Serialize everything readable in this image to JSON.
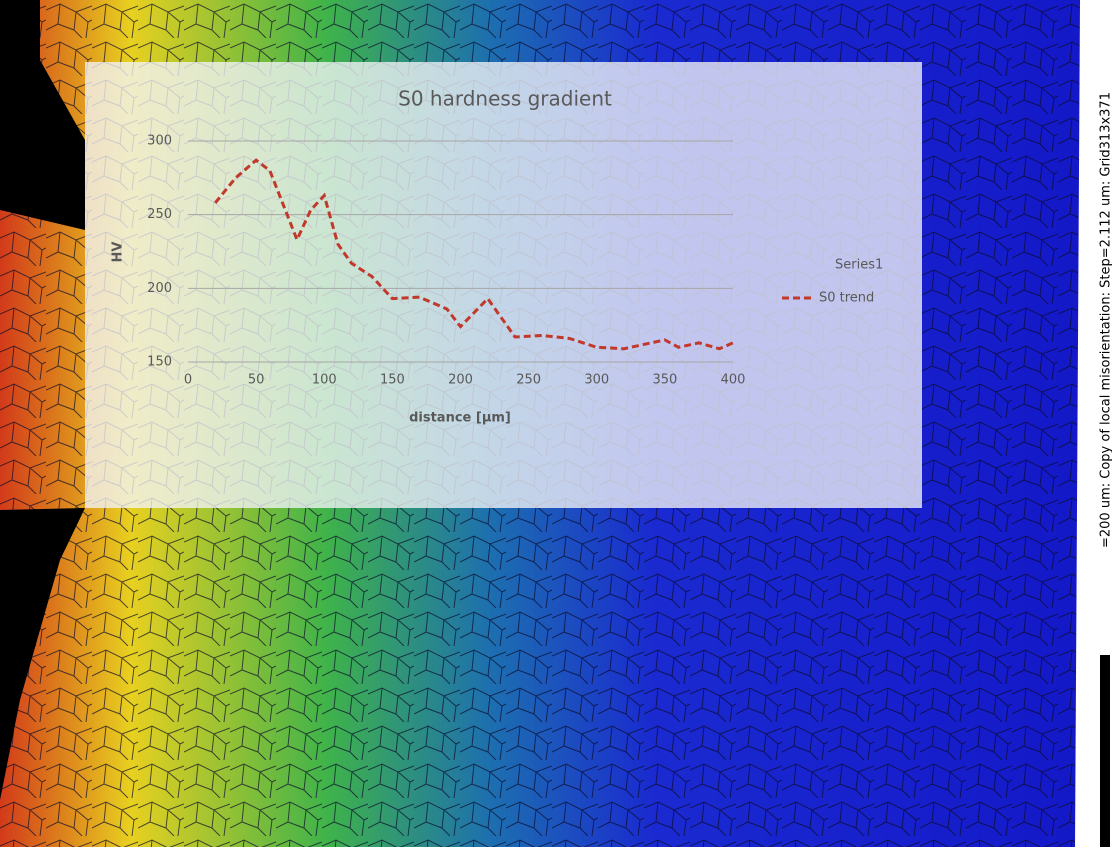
{
  "chart_data": {
    "type": "line",
    "title": "S0 hardness gradient",
    "xlabel": "distance [µm]",
    "ylabel": "HV",
    "x": [
      20,
      35,
      50,
      60,
      80,
      90,
      100,
      110,
      120,
      135,
      150,
      170,
      190,
      200,
      220,
      240,
      260,
      280,
      300,
      320,
      335,
      350,
      360,
      375,
      390,
      400
    ],
    "series": [
      {
        "name": "S0 trend",
        "color": "#c0392b",
        "dashed": true,
        "values": [
          258,
          275,
          287,
          280,
          233,
          253,
          263,
          230,
          217,
          208,
          193,
          194,
          186,
          174,
          193,
          167,
          168,
          166,
          160,
          159,
          162,
          165,
          160,
          163,
          159,
          163
        ]
      }
    ],
    "legend_title": "Series1",
    "legend": "right",
    "xlim": [
      0,
      400
    ],
    "xticks": [
      0,
      50,
      100,
      150,
      200,
      250,
      300,
      350,
      400
    ],
    "ylim": [
      150,
      300
    ],
    "yticks": [
      150,
      200,
      250,
      300
    ],
    "grid": true
  },
  "map_caption": "=200 um: Copy of local misorientation: Step=2.112 um: Grid313x371"
}
